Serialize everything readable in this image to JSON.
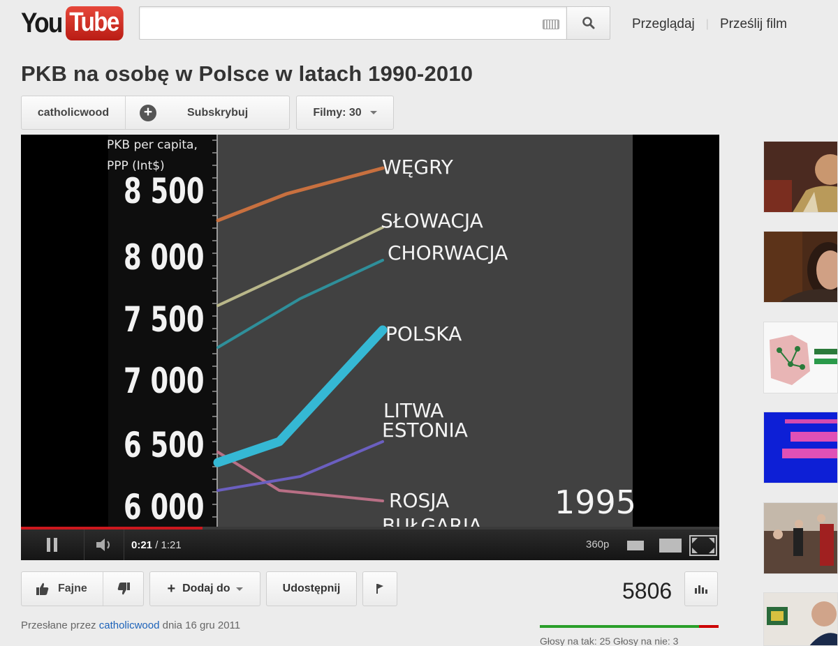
{
  "masthead": {
    "logo_you": "You",
    "logo_tube": "Tube",
    "search_placeholder": "",
    "links": [
      "Przeglądaj",
      "Prześlij film"
    ]
  },
  "video": {
    "title": "PKB na osobę w Polsce w latach 1990-2010",
    "channel": "catholicwood",
    "subscribe_label": "Subskrybuj",
    "films_label": "Filmy: 30"
  },
  "frame": {
    "axis_title_1": "PKB per capita,",
    "axis_title_2": "PPP (Int$)",
    "ticks": [
      "8 500",
      "8 000",
      "7 500",
      "7 000",
      "6 500",
      "6 000"
    ],
    "countries": [
      "WĘGRY",
      "SŁOWACJA",
      "CHORWACJA",
      "POLSKA",
      "LITWA",
      "ESTONIA",
      "ROSJA",
      "BUŁGARIA"
    ],
    "year": "1995"
  },
  "player": {
    "current_time": "0:21",
    "duration": "1:21",
    "time_sep": " / ",
    "quality": "360p",
    "progress_fraction": 0.26
  },
  "actions": {
    "like_label": "Fajne",
    "add_label": "Dodaj do",
    "share_label": "Udostępnij",
    "view_count": "5806"
  },
  "meta": {
    "uploaded_prefix": "Przesłane przez",
    "uploader": "catholicwood",
    "date_text": "dnia 16 gru 2011",
    "votes_text": "Głosy na tak: 25 Głosy na nie: 3",
    "likes_fraction": 0.89
  },
  "colors": {
    "brand_red": "#cc181e",
    "link_blue": "#1c62b9",
    "hungary": "#c8703f",
    "slovakia": "#b9b78a",
    "croatia": "#2f8f9a",
    "poland": "#35b8d4",
    "lithuania": "#6b5fc0",
    "russia": "#b86f85"
  },
  "icons": {
    "search": "search-icon",
    "keyboard": "keyboard-icon",
    "plus": "plus-circle-icon",
    "play_pause": "pause-icon",
    "volume": "volume-icon",
    "like": "thumbs-up-icon",
    "dislike": "thumbs-down-icon",
    "flag": "flag-icon",
    "stats": "bar-chart-icon"
  }
}
